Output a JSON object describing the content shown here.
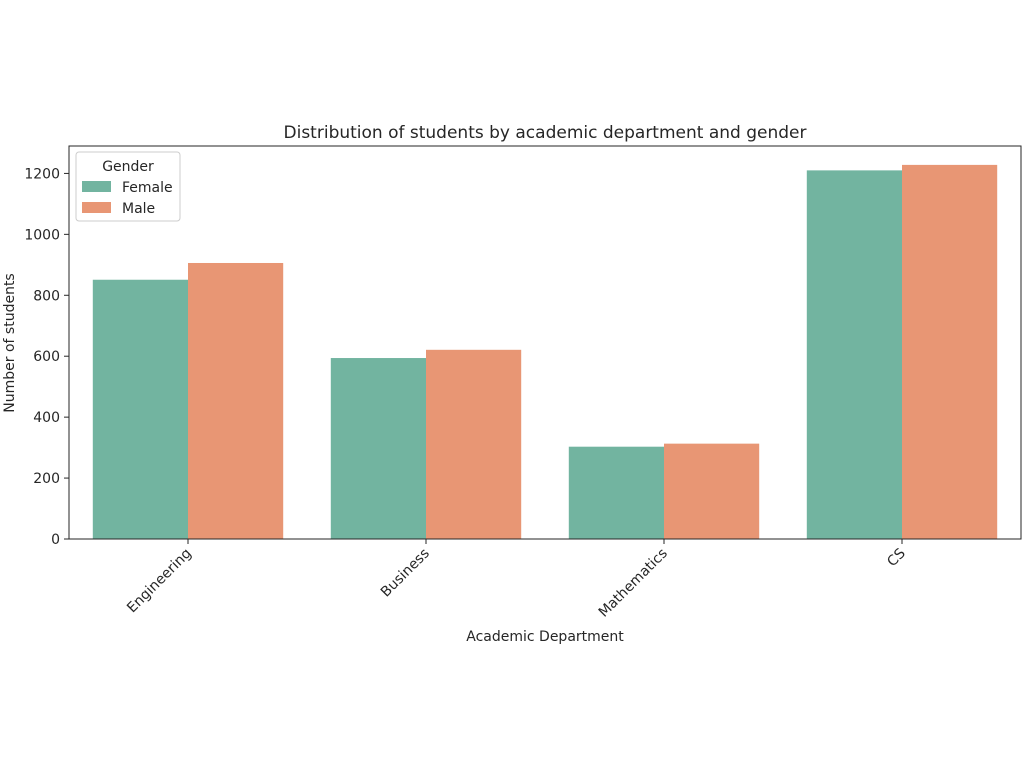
{
  "chart_data": {
    "type": "bar",
    "title": "Distribution of students by academic department and gender",
    "xlabel": "Academic Department",
    "ylabel": "Number of students",
    "categories": [
      "Engineering",
      "Business",
      "Mathematics",
      "CS"
    ],
    "series": [
      {
        "name": "Female",
        "values": [
          851,
          594,
          303,
          1210
        ],
        "color": "#72b4a0"
      },
      {
        "name": "Male",
        "values": [
          906,
          621,
          313,
          1228
        ],
        "color": "#e89674"
      }
    ],
    "ylim": [
      0,
      1290
    ],
    "yticks": [
      0,
      200,
      400,
      600,
      800,
      1000,
      1200
    ],
    "legend": {
      "title": "Gender",
      "position": "top-left"
    },
    "grid": false
  }
}
